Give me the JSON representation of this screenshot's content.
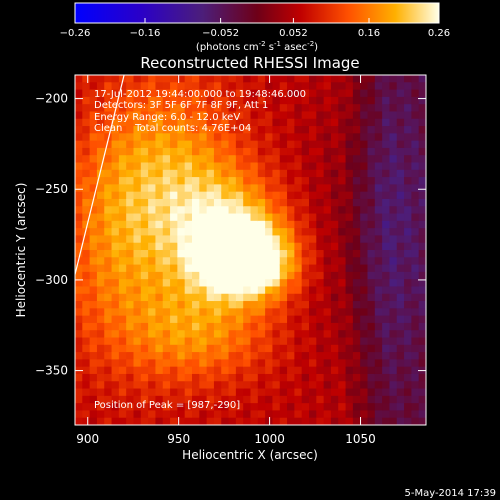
{
  "chart_data": {
    "type": "heatmap",
    "title": "Reconstructed RHESSI Image",
    "xlabel": "Heliocentric X (arcsec)",
    "ylabel": "Heliocentric Y (arcsec)",
    "xlim": [
      893,
      1086
    ],
    "ylim": [
      -380,
      -187
    ],
    "x_ticks": [
      900,
      950,
      1000,
      1050
    ],
    "y_ticks": [
      -200,
      -250,
      -300,
      -350
    ],
    "colorbar": {
      "range": [
        -0.26,
        0.26
      ],
      "ticks": [
        "-0.26",
        "-0.16",
        "-0.052",
        "0.052",
        "0.16",
        "0.26"
      ],
      "tick_values": [
        -0.26,
        -0.16,
        -0.052,
        0.052,
        0.16,
        0.26
      ],
      "unit_text": "(photons cm",
      "unit_sup1": "-2",
      "unit_mid": " s",
      "unit_sup2": "-1",
      "unit_mid2": " asec",
      "unit_sup3": "-2",
      "unit_end": ")"
    },
    "peak": [
      987,
      -290
    ],
    "annotations": [
      "17-Jul-2012 19:44:00.000 to 19:48:46.000",
      "Detectors: 3F 5F 6F 7F 8F 9F, Att 1",
      "Energy Range: 6.0 - 12.0 keV",
      "Clean    Total counts: 4.76E+04"
    ],
    "peak_label": "Position of Peak = [987,-290]",
    "limb_line": [
      [
        893,
        -297
      ],
      [
        920,
        -187
      ]
    ],
    "sources": [
      {
        "x": 987,
        "y": -290,
        "amp": 0.27,
        "sx": 18,
        "sy": 14
      },
      {
        "x": 978,
        "y": -268,
        "amp": 0.12,
        "sx": 22,
        "sy": 20
      },
      {
        "x": 950,
        "y": -235,
        "amp": 0.1,
        "sx": 25,
        "sy": 35
      },
      {
        "x": 930,
        "y": -300,
        "amp": 0.08,
        "sx": 35,
        "sy": 40
      },
      {
        "x": 965,
        "y": -330,
        "amp": 0.08,
        "sx": 28,
        "sy": 18
      },
      {
        "x": 915,
        "y": -250,
        "amp": 0.06,
        "sx": 20,
        "sy": 40
      },
      {
        "x": 1060,
        "y": -270,
        "amp": -0.05,
        "sx": 25,
        "sy": 60
      }
    ],
    "background": 0.06
  },
  "footer": {
    "date": "5-May-2014 17:39"
  }
}
